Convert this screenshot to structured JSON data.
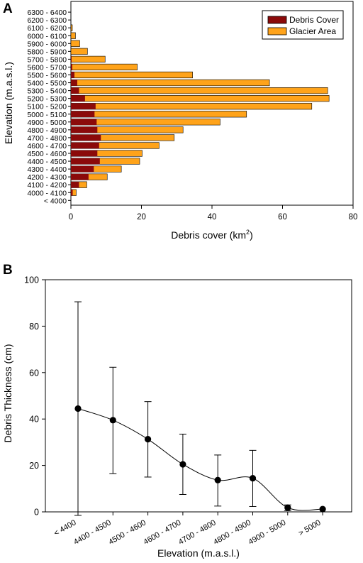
{
  "panels": {
    "a": "A",
    "b": "B"
  },
  "colors": {
    "debris": "#8b0a0a",
    "glacier": "#ffa31a",
    "axis": "#000000",
    "marker": "#000000"
  },
  "chart_data": [
    {
      "panel": "A",
      "type": "bar",
      "orientation": "horizontal",
      "stacked": true,
      "xlabel_text": "Debris cover (km",
      "xlabel_sup": "2",
      "xlabel_close": ")",
      "ylabel": "Elevation (m.a.s.l.)",
      "xlim": [
        0,
        80
      ],
      "xticks": [
        0,
        20,
        40,
        60,
        80
      ],
      "legend": {
        "placement": "top-right",
        "entries": [
          "Debris Cover",
          "Glacier Area"
        ]
      },
      "categories": [
        "< 4000",
        "4000 - 4100",
        "4100 - 4200",
        "4200 - 4300",
        "4300 - 4400",
        "4400 - 4500",
        "4500 - 4600",
        "4600 - 4700",
        "4700 - 4800",
        "4800 - 4900",
        "4900 - 5000",
        "5000 - 5100",
        "5100 - 5200",
        "5200 - 5300",
        "5300 - 5400",
        "5400 - 5500",
        "5500 - 5600",
        "5600 - 5700",
        "5700 - 5800",
        "5800 - 5900",
        "5900 - 6000",
        "6000 - 6100",
        "6100 - 6200",
        "6200 - 6300",
        "6300 - 6400"
      ],
      "series": [
        {
          "name": "Debris Cover",
          "values": [
            0,
            0.5,
            2.3,
            5,
            6.5,
            8.2,
            7.5,
            8,
            8.5,
            7.5,
            7.3,
            6.7,
            7,
            4,
            2.3,
            1.8,
            1,
            0.4,
            0.2,
            0,
            0,
            0,
            0,
            0,
            0
          ]
        },
        {
          "name": "Glacier Area",
          "values": [
            0,
            1.5,
            4.5,
            10.3,
            14.3,
            19.5,
            20.2,
            25,
            29.3,
            31.8,
            42.3,
            49.8,
            68.3,
            73.2,
            72.8,
            56.3,
            34.5,
            18.8,
            9.7,
            4.7,
            2.5,
            1.3,
            0.4,
            0,
            0
          ]
        }
      ]
    },
    {
      "panel": "B",
      "type": "line",
      "smooth": true,
      "error_bars": true,
      "xlabel": "Elevation (m.a.s.l.)",
      "ylabel": "Debris Thickness (cm)",
      "ylim": [
        0,
        100
      ],
      "yticks": [
        0,
        20,
        40,
        60,
        80,
        100
      ],
      "categories": [
        "< 4400",
        "4400 - 4500",
        "4500 - 4600",
        "4600 - 4700",
        "4700 - 4800",
        "4800 - 4900",
        "4900 - 5000",
        "> 5000"
      ],
      "values": [
        44.5,
        39.5,
        31.3,
        20.5,
        13.7,
        14.5,
        1.8,
        1.2
      ],
      "error_low": [
        -1.5,
        16.5,
        15,
        7.5,
        2.5,
        2.3,
        0.5,
        1.2
      ],
      "error_high": [
        90.5,
        62.3,
        47.5,
        33.5,
        24.5,
        26.5,
        3,
        1.2
      ]
    }
  ]
}
